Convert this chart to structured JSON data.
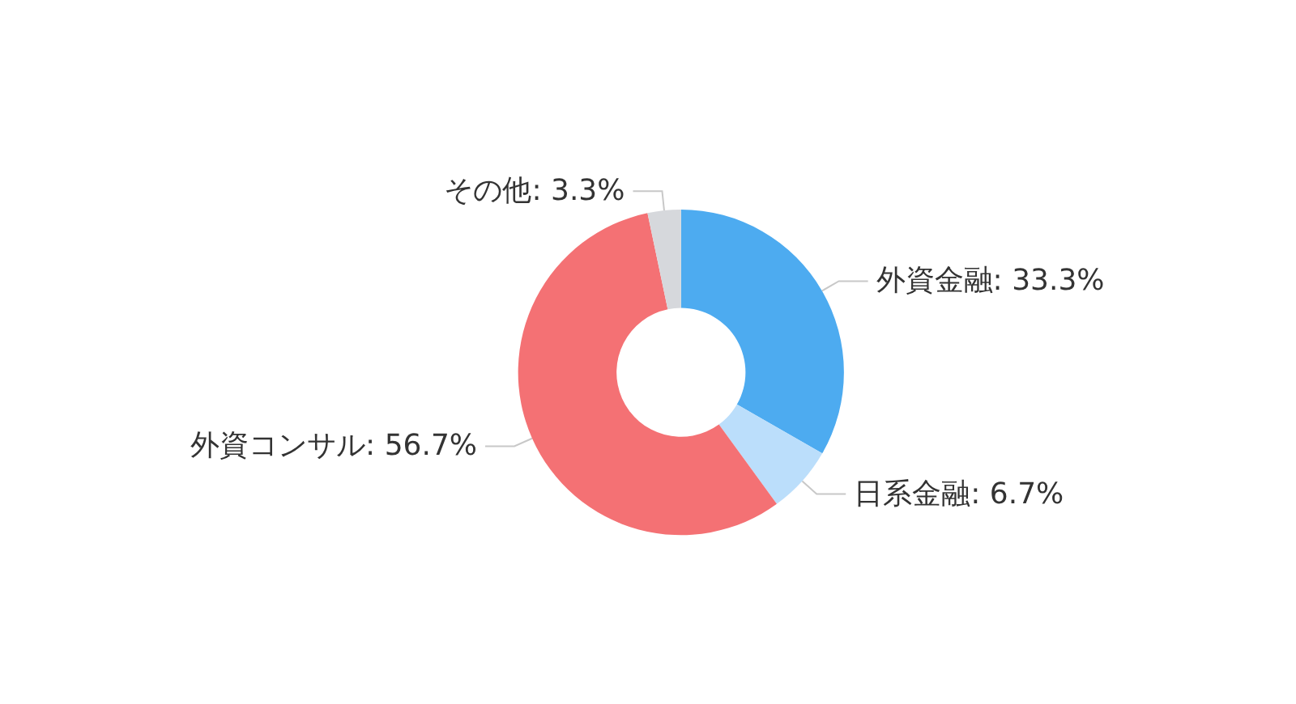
{
  "chart_data": {
    "type": "donut",
    "categories": [
      "外資金融",
      "日系金融",
      "外資コンサル",
      "その他"
    ],
    "values": [
      33.3,
      6.7,
      56.7,
      3.3
    ],
    "value_labels": [
      "33.3%",
      "6.7%",
      "56.7%",
      "3.3%"
    ],
    "colors": [
      "#4dabf0",
      "#bbdefb",
      "#f47174",
      "#d6d8dc"
    ],
    "legend": false
  }
}
